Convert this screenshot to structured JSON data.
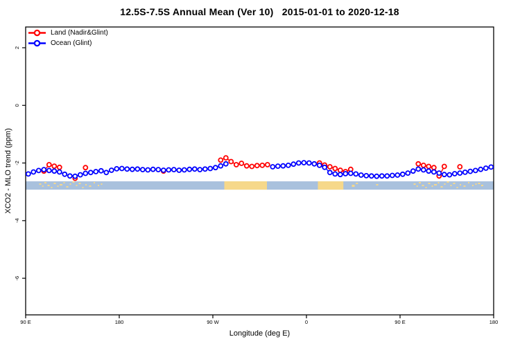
{
  "chart_data": {
    "type": "line",
    "title": "12.5S-7.5S Annual Mean (Ver 10)   2015-01-01 to 2020-12-18",
    "xlabel": "Longitude (deg E)",
    "ylabel": "XCO2 - MLO trend (ppm)",
    "xlim": [
      90,
      540
    ],
    "ylim": [
      -7.27,
      2.72
    ],
    "grid": false,
    "x_ticks": {
      "positions": [
        90,
        180,
        270,
        360,
        450,
        540
      ],
      "labels": [
        "90 E",
        "180",
        "90 W",
        "0",
        "90 E",
        "180"
      ]
    },
    "y_ticks": {
      "positions": [
        2,
        0,
        -2,
        -4,
        -6
      ],
      "labels": [
        "2",
        "0",
        "-2",
        "-4",
        "-6"
      ]
    },
    "legend": {
      "position": "top-left",
      "items": [
        {
          "label": "Land (Nadir&Glint)",
          "color": "#ff0000"
        },
        {
          "label": "Ocean (Glint)",
          "color": "#0000ff"
        }
      ]
    },
    "series": [
      {
        "name": "Land (Nadir&Glint)",
        "color": "#ff0000",
        "marker": "open-circle",
        "points": [
          [
            107.5,
            -2.28
          ],
          [
            112.5,
            -2.06
          ],
          [
            117.5,
            -2.11
          ],
          [
            122.5,
            -2.15
          ],
          [
            137.5,
            -2.53
          ],
          [
            147.5,
            -2.16
          ],
          [
            222.5,
            -2.28
          ],
          [
            277.5,
            -1.9
          ],
          [
            282.5,
            -1.82
          ],
          [
            287.5,
            -1.95
          ],
          [
            292.5,
            -2.06
          ],
          [
            297.5,
            -2.01
          ],
          [
            302.5,
            -2.1
          ],
          [
            307.5,
            -2.12
          ],
          [
            312.5,
            -2.09
          ],
          [
            317.5,
            -2.08
          ],
          [
            322.5,
            -2.06
          ],
          [
            372.5,
            -2.0
          ],
          [
            377.5,
            -2.07
          ],
          [
            382.5,
            -2.13
          ],
          [
            387.5,
            -2.19
          ],
          [
            392.5,
            -2.25
          ],
          [
            397.5,
            -2.3
          ],
          [
            402.5,
            -2.22
          ],
          [
            467.5,
            -2.03
          ],
          [
            472.5,
            -2.08
          ],
          [
            477.5,
            -2.12
          ],
          [
            482.5,
            -2.16
          ],
          [
            487.5,
            -2.45
          ],
          [
            492.5,
            -2.12
          ],
          [
            507.5,
            -2.13
          ]
        ]
      },
      {
        "name": "Ocean (Glint)",
        "color": "#0000ff",
        "marker": "open-circle",
        "points": [
          [
            92.5,
            -2.38
          ],
          [
            97.5,
            -2.31
          ],
          [
            102.5,
            -2.26
          ],
          [
            107.5,
            -2.23
          ],
          [
            112.5,
            -2.26
          ],
          [
            117.5,
            -2.28
          ],
          [
            122.5,
            -2.31
          ],
          [
            127.5,
            -2.39
          ],
          [
            132.5,
            -2.45
          ],
          [
            137.5,
            -2.46
          ],
          [
            142.5,
            -2.41
          ],
          [
            147.5,
            -2.36
          ],
          [
            152.5,
            -2.33
          ],
          [
            157.5,
            -2.3
          ],
          [
            162.5,
            -2.27
          ],
          [
            167.5,
            -2.33
          ],
          [
            172.5,
            -2.25
          ],
          [
            177.5,
            -2.2
          ],
          [
            182.5,
            -2.19
          ],
          [
            187.5,
            -2.21
          ],
          [
            192.5,
            -2.22
          ],
          [
            197.5,
            -2.21
          ],
          [
            202.5,
            -2.23
          ],
          [
            207.5,
            -2.24
          ],
          [
            212.5,
            -2.22
          ],
          [
            217.5,
            -2.23
          ],
          [
            222.5,
            -2.25
          ],
          [
            227.5,
            -2.24
          ],
          [
            232.5,
            -2.23
          ],
          [
            237.5,
            -2.25
          ],
          [
            242.5,
            -2.24
          ],
          [
            247.5,
            -2.22
          ],
          [
            252.5,
            -2.21
          ],
          [
            257.5,
            -2.23
          ],
          [
            262.5,
            -2.21
          ],
          [
            267.5,
            -2.19
          ],
          [
            272.5,
            -2.16
          ],
          [
            277.5,
            -2.1
          ],
          [
            282.5,
            -2.03
          ],
          [
            327.5,
            -2.13
          ],
          [
            332.5,
            -2.11
          ],
          [
            337.5,
            -2.1
          ],
          [
            342.5,
            -2.08
          ],
          [
            347.5,
            -2.04
          ],
          [
            352.5,
            -2.0
          ],
          [
            357.5,
            -1.99
          ],
          [
            362.5,
            -2.0
          ],
          [
            367.5,
            -2.03
          ],
          [
            372.5,
            -2.08
          ],
          [
            377.5,
            -2.15
          ],
          [
            382.5,
            -2.33
          ],
          [
            387.5,
            -2.38
          ],
          [
            392.5,
            -2.4
          ],
          [
            397.5,
            -2.37
          ],
          [
            402.5,
            -2.36
          ],
          [
            407.5,
            -2.38
          ],
          [
            412.5,
            -2.42
          ],
          [
            417.5,
            -2.44
          ],
          [
            422.5,
            -2.45
          ],
          [
            427.5,
            -2.46
          ],
          [
            432.5,
            -2.45
          ],
          [
            437.5,
            -2.45
          ],
          [
            442.5,
            -2.43
          ],
          [
            447.5,
            -2.42
          ],
          [
            452.5,
            -2.39
          ],
          [
            457.5,
            -2.35
          ],
          [
            462.5,
            -2.28
          ],
          [
            467.5,
            -2.21
          ],
          [
            472.5,
            -2.24
          ],
          [
            477.5,
            -2.28
          ],
          [
            482.5,
            -2.31
          ],
          [
            487.5,
            -2.35
          ],
          [
            492.5,
            -2.4
          ],
          [
            497.5,
            -2.41
          ],
          [
            502.5,
            -2.37
          ],
          [
            507.5,
            -2.35
          ],
          [
            512.5,
            -2.32
          ],
          [
            517.5,
            -2.29
          ],
          [
            522.5,
            -2.26
          ],
          [
            527.5,
            -2.22
          ],
          [
            532.5,
            -2.18
          ],
          [
            537.5,
            -2.14
          ]
        ]
      }
    ],
    "map_strip": {
      "description": "land/ocean geography band for latitude 12.5S-7.5S",
      "ocean_color": "#a9c1dd",
      "land_color": "#f6d88a",
      "value_range": [
        -2.636,
        -2.925
      ],
      "land_segments_lon": [
        [
          281,
          322
        ],
        [
          371,
          395.5
        ]
      ],
      "island_speckles": [
        [
          104,
          3,
          3,
          2
        ],
        [
          106.5,
          6,
          2,
          2
        ],
        [
          109,
          1,
          3,
          2
        ],
        [
          112,
          5,
          3,
          2
        ],
        [
          115,
          8,
          2,
          2
        ],
        [
          118,
          2,
          3,
          2
        ],
        [
          121,
          6,
          2,
          2
        ],
        [
          124,
          4,
          4,
          2
        ],
        [
          127,
          1,
          2,
          2
        ],
        [
          130,
          7,
          3,
          2
        ],
        [
          133,
          3,
          2,
          2
        ],
        [
          136,
          0,
          3,
          2
        ],
        [
          139,
          5,
          2,
          2
        ],
        [
          142,
          2,
          3,
          2
        ],
        [
          145,
          8,
          2,
          2
        ],
        [
          148,
          4,
          2,
          2
        ],
        [
          152,
          6,
          3,
          2
        ],
        [
          156,
          1,
          2,
          2
        ],
        [
          160,
          5,
          2,
          2
        ],
        [
          163,
          3,
          2,
          2
        ],
        [
          405,
          5,
          4,
          3
        ],
        [
          408.5,
          2,
          3,
          2
        ],
        [
          428,
          4,
          3,
          2
        ],
        [
          464,
          3,
          3,
          2
        ],
        [
          466.5,
          6,
          2,
          2
        ],
        [
          469,
          1,
          3,
          2
        ],
        [
          472,
          5,
          3,
          2
        ],
        [
          475,
          8,
          2,
          2
        ],
        [
          478,
          2,
          3,
          2
        ],
        [
          481,
          6,
          2,
          2
        ],
        [
          484,
          4,
          4,
          2
        ],
        [
          487,
          1,
          2,
          2
        ],
        [
          490,
          7,
          3,
          2
        ],
        [
          493,
          3,
          2,
          2
        ],
        [
          496,
          0,
          3,
          2
        ],
        [
          499,
          5,
          2,
          2
        ],
        [
          502,
          2,
          3,
          2
        ],
        [
          505,
          8,
          2,
          2
        ],
        [
          508,
          4,
          2,
          2
        ],
        [
          512,
          6,
          3,
          2
        ],
        [
          516,
          1,
          2,
          2
        ],
        [
          520,
          5,
          2,
          2
        ],
        [
          523,
          3,
          2,
          2
        ],
        [
          526,
          2,
          3,
          2
        ],
        [
          529,
          5,
          3,
          2
        ]
      ]
    }
  }
}
